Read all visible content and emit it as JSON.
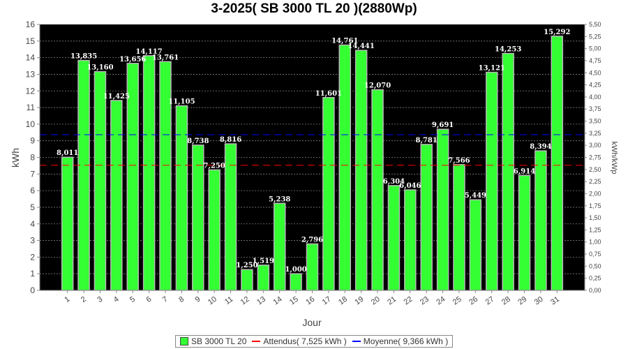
{
  "chart_data": {
    "type": "bar",
    "title": "3-2025( SB 3000 TL 20 )(2880Wp)",
    "xlabel": "Jour",
    "ylabel": "kWh",
    "y2label": "kWh/kWp",
    "ylim": [
      0,
      16
    ],
    "y2lim": [
      0,
      5.5
    ],
    "categories": [
      "1",
      "2",
      "3",
      "4",
      "5",
      "6",
      "7",
      "8",
      "9",
      "10",
      "11",
      "12",
      "13",
      "14",
      "15",
      "16",
      "17",
      "18",
      "19",
      "20",
      "21",
      "22",
      "23",
      "24",
      "25",
      "26",
      "27",
      "28",
      "29",
      "30",
      "31"
    ],
    "series": [
      {
        "name": "SB 3000 TL 20",
        "color": "#33ff33",
        "values": [
          8.011,
          13.835,
          13.16,
          11.425,
          13.656,
          14.117,
          13.761,
          11.105,
          8.738,
          7.25,
          8.816,
          1.25,
          1.519,
          5.238,
          1.0,
          2.796,
          11.601,
          14.761,
          14.441,
          12.07,
          6.304,
          6.046,
          8.781,
          9.691,
          7.566,
          5.449,
          13.121,
          14.253,
          6.914,
          8.394,
          15.292
        ],
        "labels": [
          "8,011",
          "13,835",
          "13,160",
          "11,425",
          "13,656",
          "14,117",
          "13,761",
          "11,105",
          "8,738",
          "7,250",
          "8,816",
          "1,250",
          "1,519",
          "5,238",
          "1,000",
          "2,796",
          "11,601",
          "14,761",
          "14,441",
          "12,070",
          "6,304",
          "6,046",
          "8,781",
          "9,691",
          "7,566",
          "5,449",
          "13,121",
          "14,253",
          "6,914",
          "8,394",
          "15,292"
        ]
      }
    ],
    "reference_lines": [
      {
        "name": "Attendus( 7,525 kWh )",
        "value": 7.525,
        "color": "#ff0000"
      },
      {
        "name": "Moyenne( 9,366 kWh )",
        "value": 9.366,
        "color": "#0000ff"
      }
    ],
    "y_ticks": [
      "0",
      "1",
      "2",
      "3",
      "4",
      "5",
      "6",
      "7",
      "8",
      "9",
      "10",
      "11",
      "12",
      "13",
      "14",
      "15",
      "16"
    ],
    "y2_ticks": [
      "0,00",
      "0,25",
      "0,50",
      "0,75",
      "1,00",
      "1,25",
      "1,50",
      "1,75",
      "2,00",
      "2,25",
      "2,50",
      "2,75",
      "3,00",
      "3,25",
      "3,50",
      "3,75",
      "4,00",
      "4,25",
      "4,50",
      "4,75",
      "5,00",
      "5,25",
      "5,50"
    ],
    "grid": true,
    "background": "#000000",
    "legend_position": "bottom"
  }
}
